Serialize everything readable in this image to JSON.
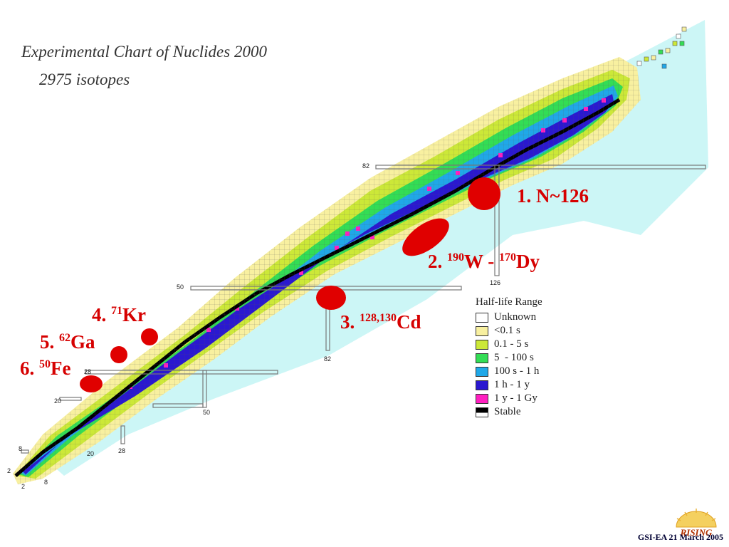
{
  "title": {
    "line1": "Experimental Chart of Nuclides 2000",
    "line2": "2975 isotopes"
  },
  "regions": [
    {
      "id": "1",
      "prefix": "1. ",
      "mass": "",
      "symbol": "N~126"
    },
    {
      "id": "2",
      "prefix": "2. ",
      "mass": "190",
      "symbol": "W",
      "mid": " - ",
      "mass2": "170",
      "symbol2": "Dy"
    },
    {
      "id": "3",
      "prefix": "3. ",
      "mass": "128,130",
      "symbol": "Cd"
    },
    {
      "id": "4",
      "prefix": "4. ",
      "mass": "71",
      "symbol": "Kr"
    },
    {
      "id": "5",
      "prefix": "5. ",
      "mass": "62",
      "symbol": "Ga"
    },
    {
      "id": "6",
      "prefix": "6. ",
      "mass": "50",
      "symbol": "Fe"
    }
  ],
  "magic_numbers": {
    "n2": "2",
    "n8": "8",
    "n20": "20",
    "n28": "28",
    "n50": "50",
    "n82": "82",
    "n126": "126"
  },
  "legend": {
    "title": "Half-life Range",
    "items": [
      {
        "label": "Unknown",
        "color": "#ffffff"
      },
      {
        "label": "<0.1 s",
        "color": "#f8f0a0"
      },
      {
        "label": "0.1 - 5 s",
        "color": "#cce838"
      },
      {
        "label": "5  - 100 s",
        "color": "#33dd55"
      },
      {
        "label": "100 s - 1 h",
        "color": "#20a8e8"
      },
      {
        "label": "1 h - 1 y",
        "color": "#2a18d0"
      },
      {
        "label": "1 y - 1 Gy",
        "color": "#ff20c0"
      },
      {
        "label": "Stable",
        "color": "#000000"
      }
    ]
  },
  "colors": {
    "accent": "#e00000",
    "unknown_region": "#ccf6f6"
  },
  "logo": {
    "text": "RISING"
  },
  "footer": "GSI-EA 21 March 2005"
}
